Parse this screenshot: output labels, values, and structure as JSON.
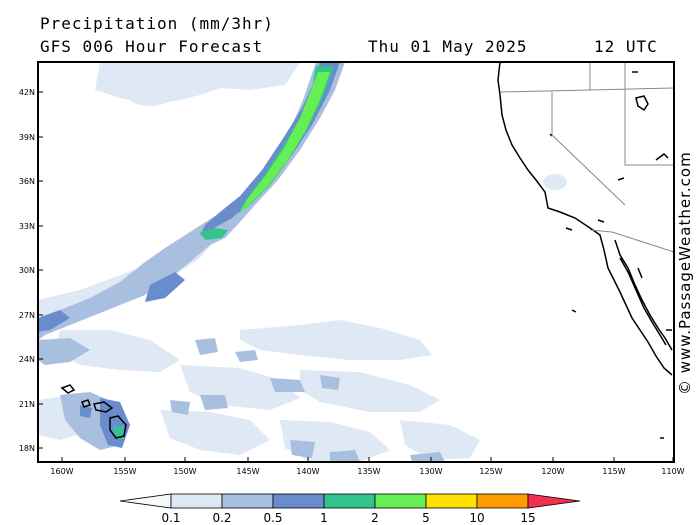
{
  "header": {
    "title": "Precipitation (mm/3hr)",
    "subtitle": "GFS 006 Hour Forecast",
    "date": "Thu 01 May 2025",
    "time": "12 UTC"
  },
  "credit": "© www.PassageWeather.com",
  "map": {
    "lat_labels": [
      "42N",
      "39N",
      "36N",
      "33N",
      "30N",
      "27N",
      "24N",
      "21N",
      "18N"
    ],
    "lon_labels": [
      "160W",
      "155W",
      "150W",
      "145W",
      "140W",
      "135W",
      "130W",
      "125W",
      "120W",
      "115W",
      "110W"
    ]
  },
  "colorbar": {
    "ticks": [
      "0.1",
      "0.2",
      "0.5",
      "1",
      "2",
      "5",
      "10",
      "15"
    ],
    "colors": [
      "#f4f6fb",
      "#dfe8f5",
      "#a9bfe0",
      "#6a8ccd",
      "#33c48c",
      "#66ee55",
      "#ffe000",
      "#ff9a00",
      "#f03050"
    ]
  }
}
